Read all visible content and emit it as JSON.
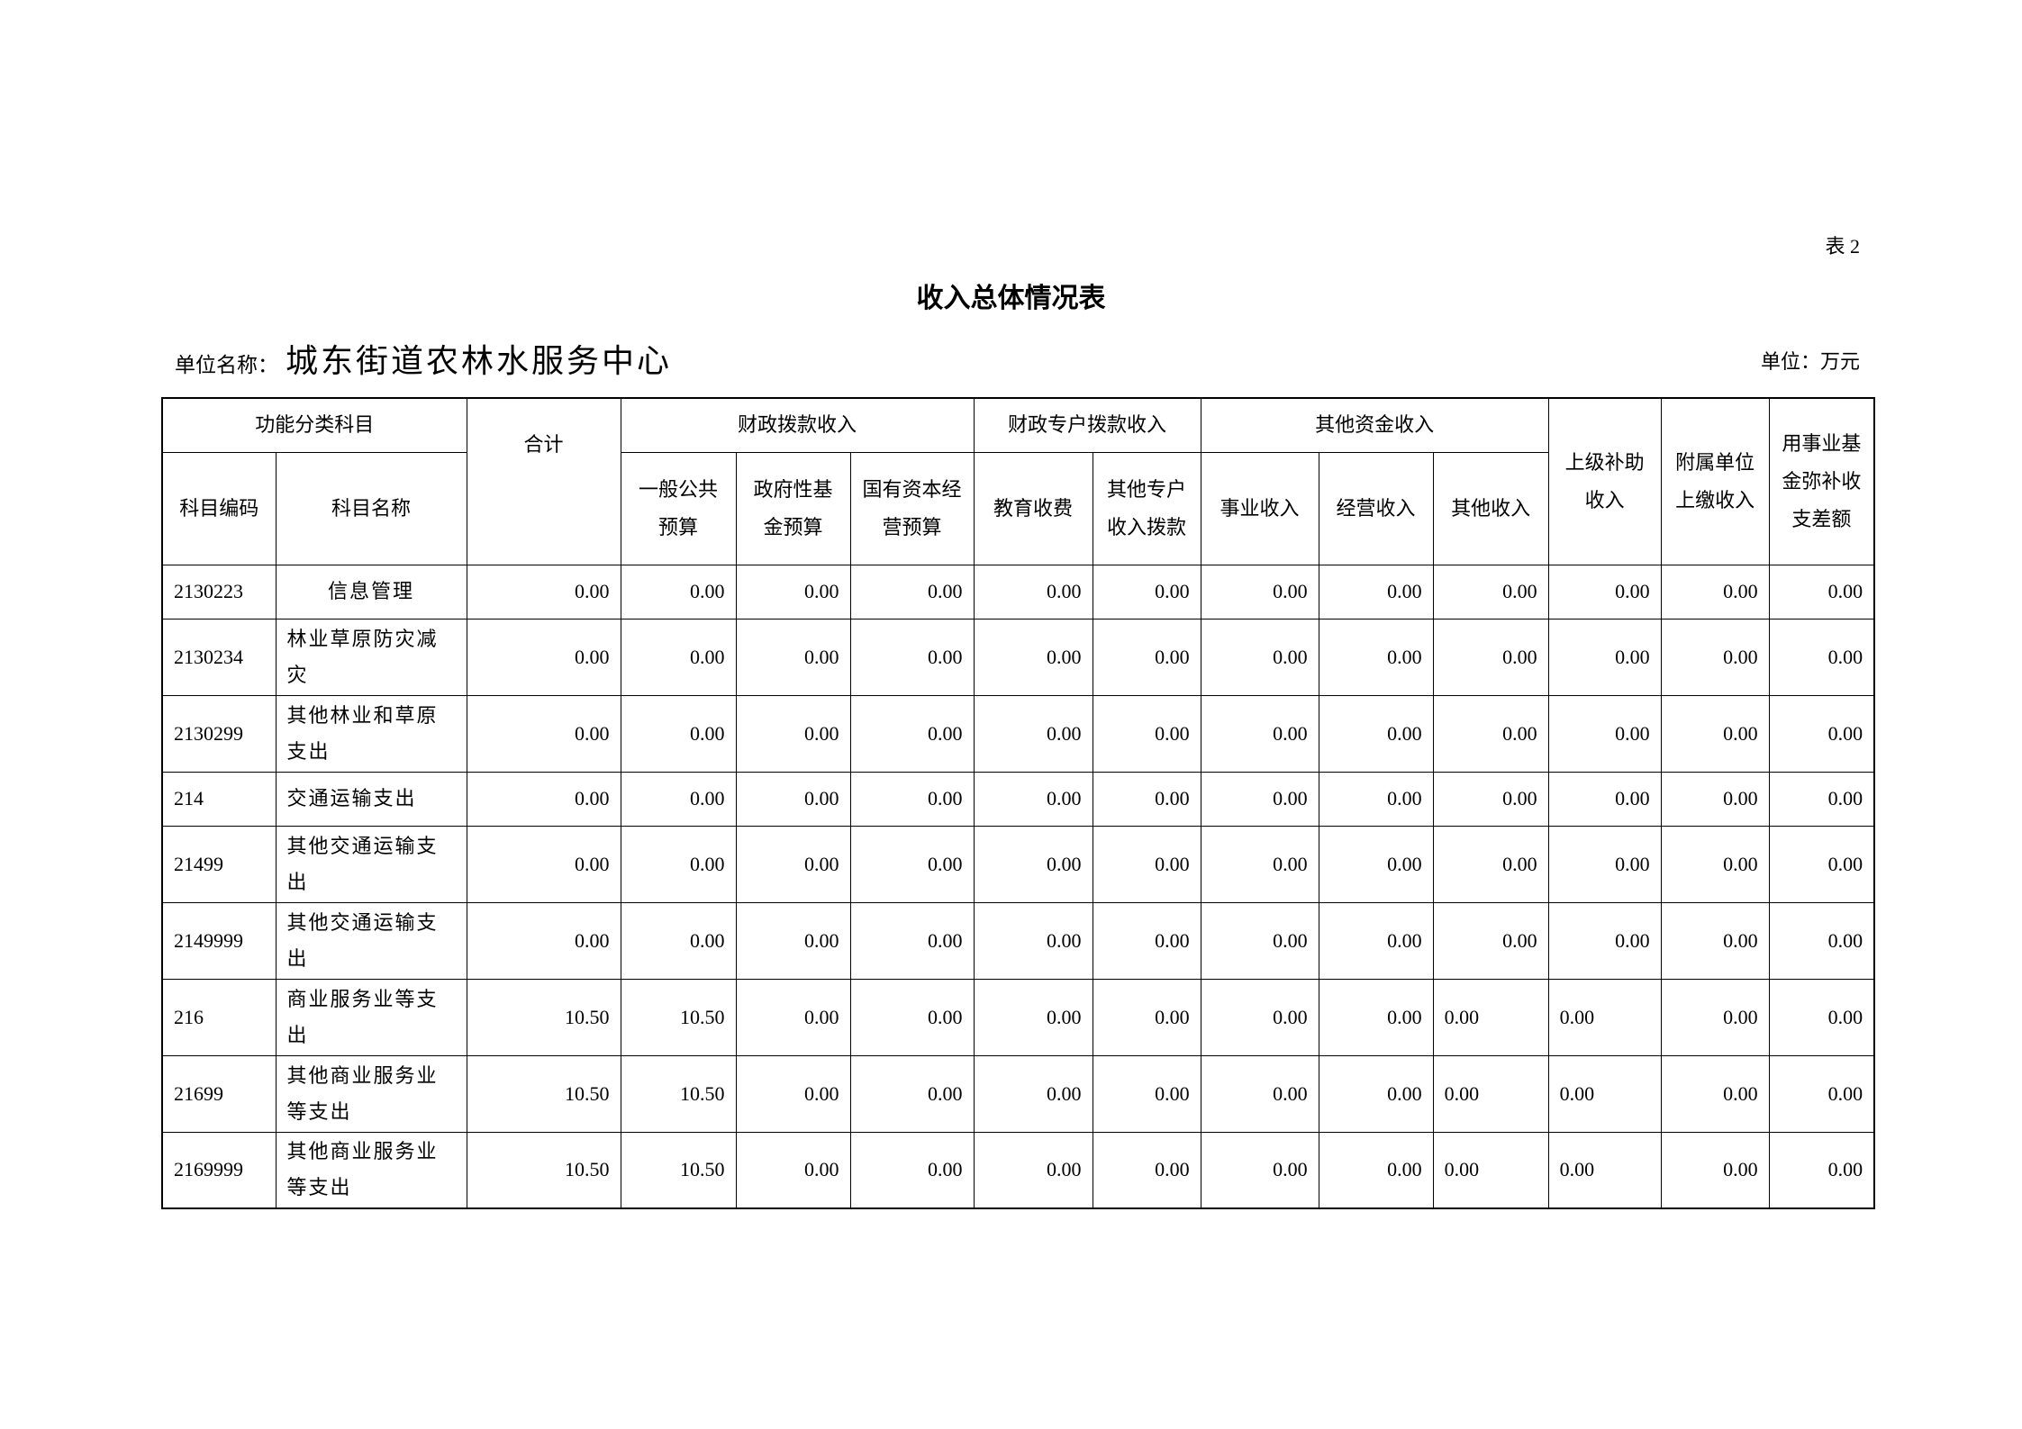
{
  "table_number": "表 2",
  "title": "收入总体情况表",
  "unit_name_label": "单位名称：",
  "unit_name": "城东街道农林水服务中心",
  "unit_label": "单位：万元",
  "headers": {
    "group_function": "功能分类科目",
    "code": "科目编码",
    "name": "科目名称",
    "total": "合计",
    "group_fiscal": "财政拨款收入",
    "general_budget": "一般公共预算",
    "gov_fund": "政府性基金预算",
    "state_capital": "国有资本经营预算",
    "group_special": "财政专户拨款收入",
    "education_fee": "教育收费",
    "other_special": "其他专户收入拨款",
    "group_other": "其他资金收入",
    "business_income": "事业收入",
    "operating_income": "经营收入",
    "other_income": "其他收入",
    "superior_subsidy": "上级补助收入",
    "affiliated_income": "附属单位上缴收入",
    "fund_balance": "用事业基金弥补收支差额"
  },
  "rows": [
    {
      "code": "2130223",
      "name": "信息管理",
      "values": [
        "0.00",
        "0.00",
        "0.00",
        "0.00",
        "0.00",
        "0.00",
        "0.00",
        "0.00",
        "0.00",
        "0.00",
        "0.00",
        "0.00"
      ]
    },
    {
      "code": "2130234",
      "name": "林业草原防灾减灾",
      "values": [
        "0.00",
        "0.00",
        "0.00",
        "0.00",
        "0.00",
        "0.00",
        "0.00",
        "0.00",
        "0.00",
        "0.00",
        "0.00",
        "0.00"
      ]
    },
    {
      "code": "2130299",
      "name": "其他林业和草原支出",
      "values": [
        "0.00",
        "0.00",
        "0.00",
        "0.00",
        "0.00",
        "0.00",
        "0.00",
        "0.00",
        "0.00",
        "0.00",
        "0.00",
        "0.00"
      ]
    },
    {
      "code": "214",
      "name": "交通运输支出",
      "values": [
        "0.00",
        "0.00",
        "0.00",
        "0.00",
        "0.00",
        "0.00",
        "0.00",
        "0.00",
        "0.00",
        "0.00",
        "0.00",
        "0.00"
      ]
    },
    {
      "code": "21499",
      "name": "其他交通运输支出",
      "values": [
        "0.00",
        "0.00",
        "0.00",
        "0.00",
        "0.00",
        "0.00",
        "0.00",
        "0.00",
        "0.00",
        "0.00",
        "0.00",
        "0.00"
      ]
    },
    {
      "code": "2149999",
      "name": "其他交通运输支出",
      "values": [
        "0.00",
        "0.00",
        "0.00",
        "0.00",
        "0.00",
        "0.00",
        "0.00",
        "0.00",
        "0.00",
        "0.00",
        "0.00",
        "0.00"
      ]
    },
    {
      "code": "216",
      "name": "商业服务业等支出",
      "values": [
        "10.50",
        "10.50",
        "0.00",
        "0.00",
        "0.00",
        "0.00",
        "0.00",
        "0.00",
        "0.00",
        "0.00",
        "0.00",
        "0.00"
      ]
    },
    {
      "code": "21699",
      "name": "其他商业服务业等支出",
      "values": [
        "10.50",
        "10.50",
        "0.00",
        "0.00",
        "0.00",
        "0.00",
        "0.00",
        "0.00",
        "0.00",
        "0.00",
        "0.00",
        "0.00"
      ]
    },
    {
      "code": "2169999",
      "name": "其他商业服务业等支出",
      "values": [
        "10.50",
        "10.50",
        "0.00",
        "0.00",
        "0.00",
        "0.00",
        "0.00",
        "0.00",
        "0.00",
        "0.00",
        "0.00",
        "0.00"
      ]
    }
  ]
}
